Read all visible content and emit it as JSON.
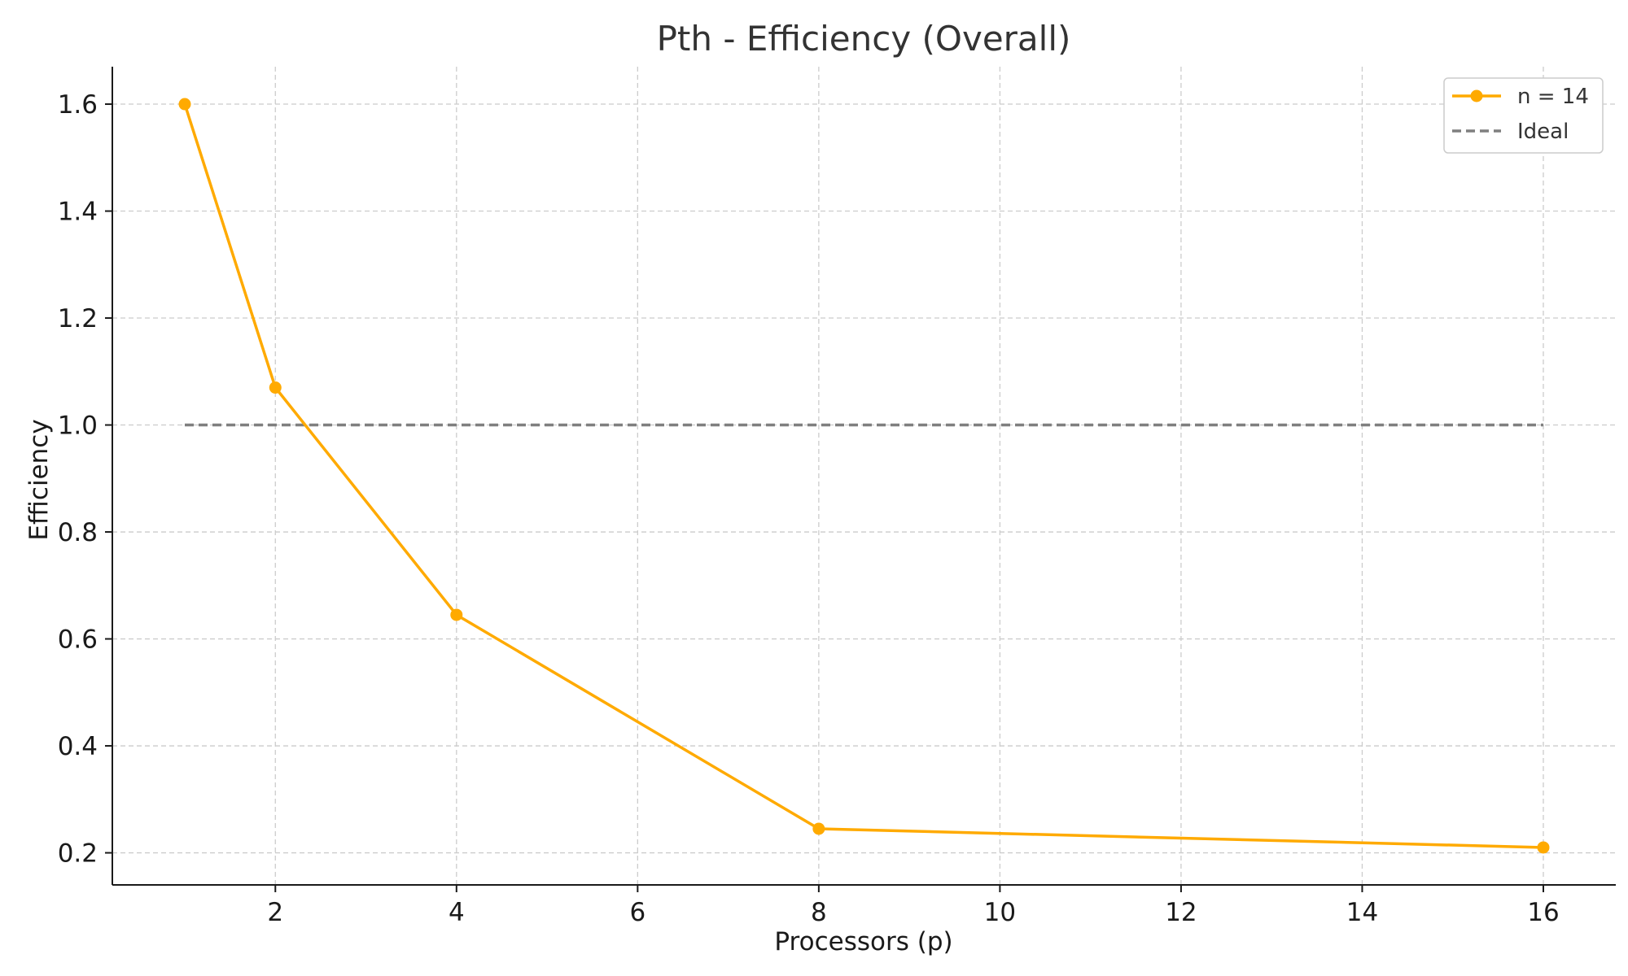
{
  "chart_data": {
    "type": "line",
    "title": "Pth - Efficiency (Overall)",
    "xlabel": "Processors (p)",
    "ylabel": "Efficiency",
    "x": [
      1,
      2,
      4,
      8,
      16
    ],
    "xlim": [
      0.2,
      16.8
    ],
    "ylim": [
      0.14,
      1.67
    ],
    "xticks": [
      2,
      4,
      6,
      8,
      10,
      12,
      14,
      16
    ],
    "yticks": [
      0.2,
      0.4,
      0.6,
      0.8,
      1.0,
      1.2,
      1.4,
      1.6
    ],
    "ytick_labels": [
      "0.2",
      "0.4",
      "0.6",
      "0.8",
      "1.0",
      "1.2",
      "1.4",
      "1.6"
    ],
    "grid": true,
    "legend_position": "top-right",
    "series": [
      {
        "name": "n = 14",
        "values": [
          1.6,
          1.07,
          0.645,
          0.245,
          0.21
        ],
        "color": "#FFAA00",
        "style": "solid",
        "marker": "circle"
      },
      {
        "name": "Ideal",
        "values": [
          1.0,
          1.0,
          1.0,
          1.0,
          1.0
        ],
        "color": "#7f7f7f",
        "style": "dashed",
        "marker": "none"
      }
    ]
  }
}
